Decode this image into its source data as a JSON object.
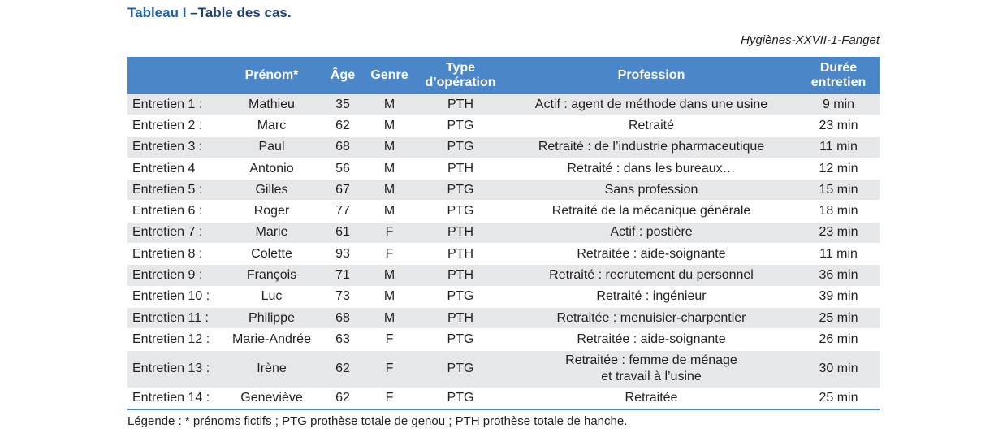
{
  "caption": {
    "prefix": "Tableau I",
    "rest": "–Table des cas."
  },
  "source": "Hygiènes-XXVII-1-Fanget",
  "table": {
    "headers": {
      "id": "",
      "prenom": "Prénom*",
      "age": "Âge",
      "genre": "Genre",
      "type_line1": "Type",
      "type_line2": "d’opération",
      "profession": "Profession",
      "duree_line1": "Durée",
      "duree_line2": "entretien"
    },
    "rows": [
      {
        "id": "Entretien 1 :",
        "prenom": "Mathieu",
        "age": "35",
        "genre": "M",
        "type": "PTH",
        "profession": "Actif : agent de méthode dans une usine",
        "profession2": "",
        "duree": "9 min"
      },
      {
        "id": "Entretien 2 :",
        "prenom": "Marc",
        "age": "62",
        "genre": "M",
        "type": "PTG",
        "profession": "Retraité",
        "profession2": "",
        "duree": "23 min"
      },
      {
        "id": "Entretien 3 :",
        "prenom": "Paul",
        "age": "68",
        "genre": "M",
        "type": "PTG",
        "profession": "Retraité : de l’industrie pharmaceutique",
        "profession2": "",
        "duree": "11 min"
      },
      {
        "id": "Entretien 4",
        "prenom": "Antonio",
        "age": "56",
        "genre": "M",
        "type": "PTH",
        "profession": "Retraité : dans les bureaux…",
        "profession2": "",
        "duree": "12 min"
      },
      {
        "id": "Entretien 5 :",
        "prenom": "Gilles",
        "age": "67",
        "genre": "M",
        "type": "PTG",
        "profession": "Sans profession",
        "profession2": "",
        "duree": "15 min"
      },
      {
        "id": "Entretien 6 :",
        "prenom": "Roger",
        "age": "77",
        "genre": "M",
        "type": "PTG",
        "profession": "Retraité de la mécanique générale",
        "profession2": "",
        "duree": "18 min"
      },
      {
        "id": "Entretien 7 :",
        "prenom": "Marie",
        "age": "61",
        "genre": "F",
        "type": "PTH",
        "profession": "Actif : postière",
        "profession2": "",
        "duree": "23 min"
      },
      {
        "id": "Entretien 8 :",
        "prenom": "Colette",
        "age": "93",
        "genre": "F",
        "type": "PTH",
        "profession": "Retraitée : aide-soignante",
        "profession2": "",
        "duree": "11 min"
      },
      {
        "id": "Entretien 9 :",
        "prenom": "François",
        "age": "71",
        "genre": "M",
        "type": "PTH",
        "profession": "Retraité : recrutement du personnel",
        "profession2": "",
        "duree": "36 min"
      },
      {
        "id": "Entretien 10 :",
        "prenom": "Luc",
        "age": "73",
        "genre": "M",
        "type": "PTG",
        "profession": "Retraité : ingénieur",
        "profession2": "",
        "duree": "39 min"
      },
      {
        "id": "Entretien 11 :",
        "prenom": "Philippe",
        "age": "68",
        "genre": "M",
        "type": "PTH",
        "profession": "Retraitée : menuisier-charpentier",
        "profession2": "",
        "duree": "25 min"
      },
      {
        "id": "Entretien 12 :",
        "prenom": "Marie-Andrée",
        "age": "63",
        "genre": "F",
        "type": "PTG",
        "profession": "Retraitée : aide-soignante",
        "profession2": "",
        "duree": "26 min"
      },
      {
        "id": "Entretien 13 :",
        "prenom": "Irène",
        "age": "62",
        "genre": "F",
        "type": "PTG",
        "profession": "Retraitée : femme de ménage",
        "profession2": "et travail à l’usine",
        "duree": "30 min"
      },
      {
        "id": "Entretien 14 :",
        "prenom": "Geneviève",
        "age": "62",
        "genre": "F",
        "type": "PTG",
        "profession": "Retraitée",
        "profession2": "",
        "duree": "25 min"
      }
    ]
  },
  "legend": "Légende : * prénoms fictifs ; PTG prothèse totale de genou ; PTH prothèse totale de hanche.",
  "colors": {
    "header_bg": "#4a86c8",
    "row_stripe": "#e6e7e8",
    "title_blue": "#1f5fa8"
  }
}
